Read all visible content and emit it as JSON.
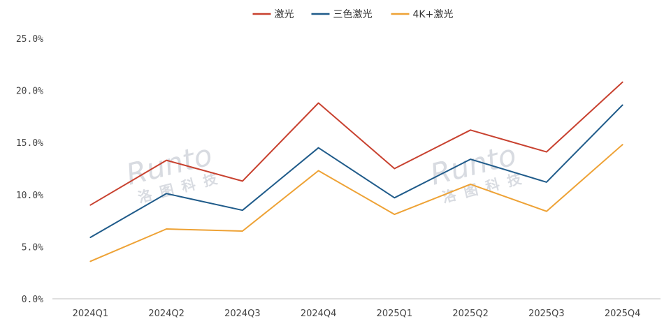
{
  "chart_data": {
    "type": "line",
    "categories": [
      "2024Q1",
      "2024Q2",
      "2024Q3",
      "2024Q4",
      "2025Q1",
      "2025Q2",
      "2025Q3",
      "2025Q4"
    ],
    "series": [
      {
        "name": "激光",
        "color": "#c8412f",
        "values": [
          9.0,
          13.3,
          11.3,
          18.8,
          12.5,
          16.2,
          14.1,
          20.8
        ]
      },
      {
        "name": "三色激光",
        "color": "#1f5b8a",
        "values": [
          5.9,
          10.1,
          8.5,
          14.5,
          9.7,
          13.4,
          11.2,
          18.6
        ]
      },
      {
        "name": "4K+激光",
        "color": "#eea235",
        "values": [
          3.6,
          6.7,
          6.5,
          12.3,
          8.1,
          11.0,
          8.4,
          14.8
        ]
      }
    ],
    "y_ticks": [
      "0.0%",
      "5.0%",
      "10.0%",
      "15.0%",
      "20.0%",
      "25.0%"
    ],
    "ylim": [
      0,
      25
    ],
    "legend_position": "top-center",
    "grid": false,
    "watermark": {
      "latin": "Runto",
      "cjk": "洛图科技"
    }
  }
}
